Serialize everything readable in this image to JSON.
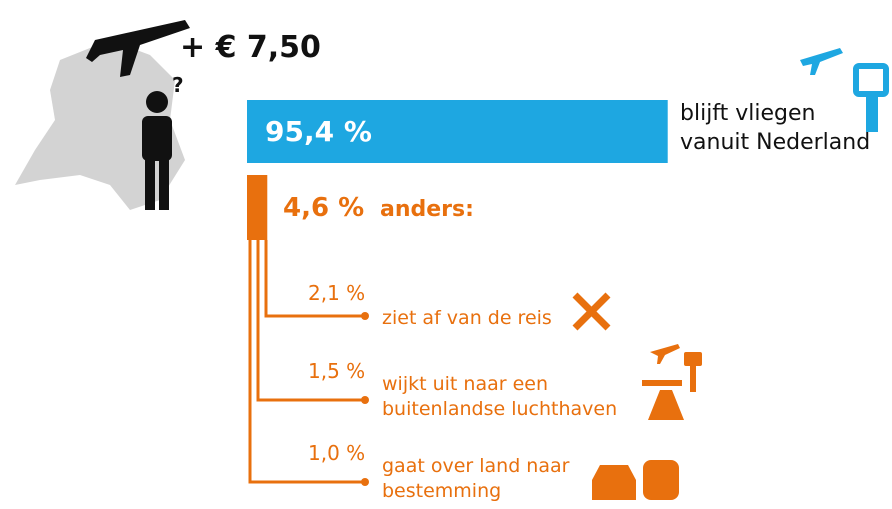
{
  "chart_data": {
    "type": "bar",
    "title": "+ € 7,50",
    "categories": [
      "blijft vliegen\nvanuit Nederland",
      "anders:"
    ],
    "values": [
      95.4,
      4.6
    ],
    "value_labels": [
      "95,4 %",
      "4,6 %"
    ],
    "colors": [
      "#1ea7e1",
      "#e8700e"
    ],
    "breakdown": {
      "values": [
        2.1,
        1.5,
        1.0
      ],
      "value_labels": [
        "2,1 %",
        "1,5 %",
        "1,0 %"
      ],
      "labels": [
        "ziet af van de reis",
        "wijkt uit naar een\nbuitenlandse luchthaven",
        "gaat over land naar\nbestemming"
      ]
    }
  }
}
